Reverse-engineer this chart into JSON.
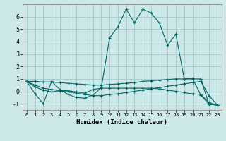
{
  "xlabel": "Humidex (Indice chaleur)",
  "ylabel": "",
  "xlim": [
    -0.5,
    23.5
  ],
  "ylim": [
    -1.5,
    7.0
  ],
  "yticks": [
    -1,
    0,
    1,
    2,
    3,
    4,
    5,
    6
  ],
  "xticks": [
    0,
    1,
    2,
    3,
    4,
    5,
    6,
    7,
    8,
    9,
    10,
    11,
    12,
    13,
    14,
    15,
    16,
    17,
    18,
    19,
    20,
    21,
    22,
    23
  ],
  "bg_color": "#cce8e8",
  "grid_color": "#aacccc",
  "line_color": "#006666",
  "lines": [
    [
      0.8,
      -0.2,
      -1.0,
      0.8,
      0.15,
      -0.25,
      -0.5,
      -0.55,
      -0.3,
      0.3,
      4.3,
      5.2,
      6.6,
      5.5,
      6.6,
      6.3,
      5.5,
      3.7,
      4.6,
      1.0,
      1.05,
      -0.3,
      -1.05,
      -1.1
    ],
    [
      0.8,
      0.8,
      0.75,
      0.75,
      0.7,
      0.65,
      0.6,
      0.55,
      0.5,
      0.5,
      0.55,
      0.6,
      0.65,
      0.7,
      0.8,
      0.85,
      0.9,
      0.95,
      1.0,
      1.0,
      1.0,
      1.0,
      -1.05,
      -1.1
    ],
    [
      0.8,
      0.35,
      0.1,
      -0.05,
      0.05,
      0.05,
      -0.05,
      -0.15,
      0.15,
      0.25,
      0.25,
      0.25,
      0.25,
      0.25,
      0.25,
      0.25,
      0.2,
      0.1,
      0.0,
      -0.1,
      -0.2,
      -0.25,
      -0.9,
      -1.1
    ],
    [
      0.8,
      0.5,
      0.25,
      0.15,
      0.05,
      -0.05,
      -0.15,
      -0.25,
      -0.35,
      -0.35,
      -0.25,
      -0.2,
      -0.1,
      0.0,
      0.1,
      0.2,
      0.3,
      0.4,
      0.5,
      0.6,
      0.7,
      0.8,
      -0.35,
      -1.1
    ]
  ]
}
